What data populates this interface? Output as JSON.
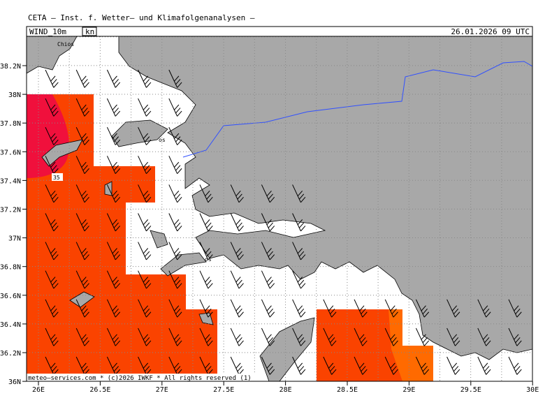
{
  "header": {
    "title": "CETA – Inst. f. Wetter– und Klimafolgenanalysen –",
    "parameter": "WIND_10m",
    "unit": "kn",
    "date": "26.01.2026 09 UTC"
  },
  "axes": {
    "lat_labels": [
      "38.2N",
      "38N",
      "37.8N",
      "37.6N",
      "37.4N",
      "37.2N",
      "37N",
      "36.8N",
      "36.6N",
      "36.4N",
      "36.2N",
      "36N"
    ],
    "lon_labels": [
      "26E",
      "26.5E",
      "27E",
      "27.5E",
      "28E",
      "28.5E",
      "29E",
      "29.5E",
      "30E"
    ]
  },
  "map": {
    "places": [
      "Chios",
      "os",
      "os"
    ],
    "contour_label": "35"
  },
  "footer": "meteo–services.com * (c)2026 IWKF * All rights reserved (1)"
}
